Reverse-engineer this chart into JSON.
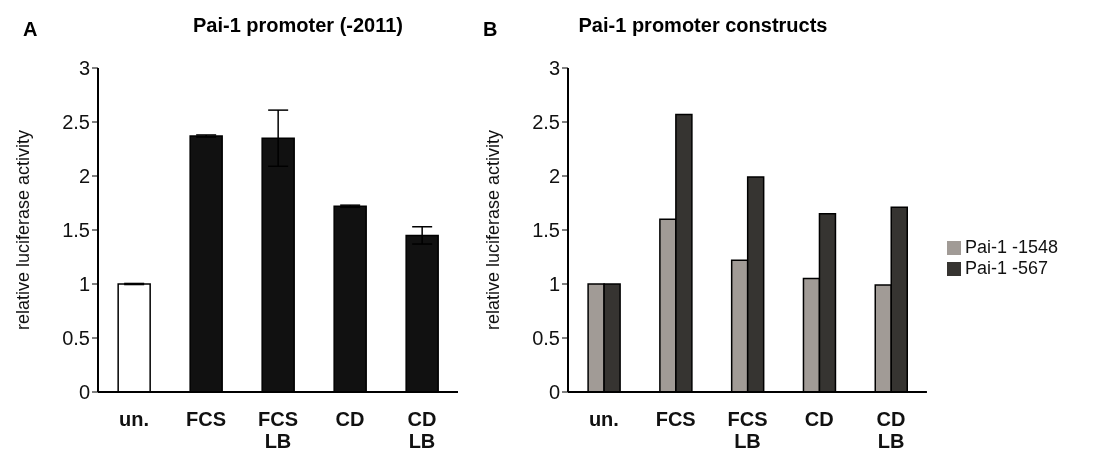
{
  "chart_data": [
    {
      "type": "bar",
      "title": "Pai-1 promoter (-2011)",
      "ylabel": "relative luciferase activity",
      "annotations": [
        "A"
      ],
      "categories": [
        "un.",
        "FCS",
        "FCS LB",
        "CD",
        "CD LB"
      ],
      "values": [
        1.0,
        2.37,
        2.35,
        1.72,
        1.45
      ],
      "errors": [
        0.005,
        0.01,
        0.26,
        0.01,
        0.08
      ],
      "colors": [
        "#ffffff",
        "#111111",
        "#111111",
        "#111111",
        "#111111"
      ],
      "ylim": [
        0,
        3
      ],
      "yticks": [
        0,
        0.5,
        1,
        1.5,
        2,
        2.5,
        3
      ],
      "grid": false,
      "legend": false
    },
    {
      "type": "bar",
      "title": "Pai-1 promoter constructs",
      "ylabel": "relative luciferase activity",
      "annotations": [
        "B"
      ],
      "categories": [
        "un.",
        "FCS",
        "FCS LB",
        "CD",
        "CD LB"
      ],
      "series": [
        {
          "name": "Pai-1 -1548",
          "color": "#a19b96",
          "values": [
            1.0,
            1.6,
            1.22,
            1.05,
            0.99
          ]
        },
        {
          "name": "Pai-1 -567",
          "color": "#363431",
          "values": [
            1.0,
            2.57,
            1.99,
            1.65,
            1.71
          ]
        }
      ],
      "ylim": [
        0,
        3
      ],
      "yticks": [
        0,
        0.5,
        1,
        1.5,
        2,
        2.5,
        3
      ],
      "grid": false,
      "legend": "right"
    }
  ]
}
